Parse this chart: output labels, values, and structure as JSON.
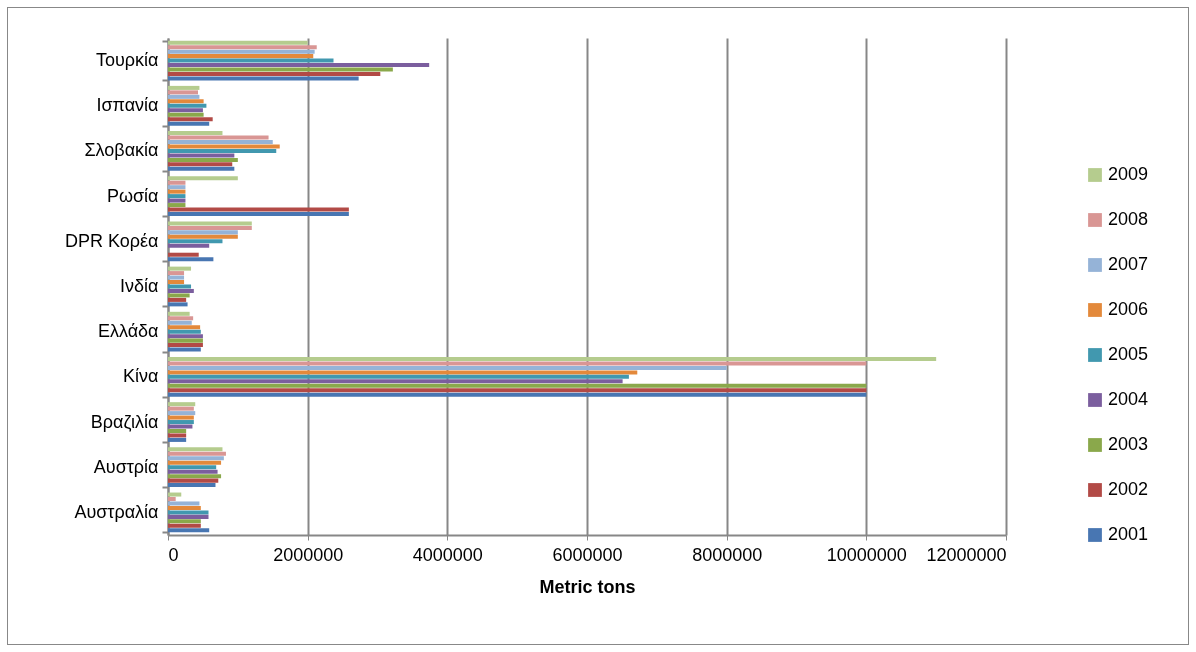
{
  "chart_data": {
    "type": "bar",
    "orientation": "horizontal",
    "xlabel": "Metric tons",
    "categories": [
      "Τουρκία",
      "Ισπανία",
      "Σλοβακία",
      "Ρωσία",
      "DPR Κορέα",
      "Ινδία",
      "Ελλάδα",
      "Κίνα",
      "Βραζιλία",
      "Αυστρία",
      "Αυστραλία"
    ],
    "series": [
      {
        "name": "2009",
        "color": "#b5cc8e",
        "values": [
          2000000,
          450000,
          780000,
          1000000,
          1200000,
          330000,
          310000,
          11000000,
          390000,
          780000,
          190000
        ]
      },
      {
        "name": "2008",
        "color": "#d99694",
        "values": [
          2130000,
          430000,
          1440000,
          250000,
          1200000,
          230000,
          360000,
          10000000,
          370000,
          830000,
          110000
        ]
      },
      {
        "name": "2007",
        "color": "#95b3d7",
        "values": [
          2100000,
          450000,
          1500000,
          250000,
          1000000,
          230000,
          340000,
          8000000,
          390000,
          800000,
          450000
        ]
      },
      {
        "name": "2006",
        "color": "#e3893b",
        "values": [
          2080000,
          510000,
          1600000,
          250000,
          1000000,
          230000,
          460000,
          6720000,
          370000,
          760000,
          470000
        ]
      },
      {
        "name": "2005",
        "color": "#4198af",
        "values": [
          2370000,
          550000,
          1550000,
          250000,
          780000,
          330000,
          470000,
          6600000,
          370000,
          690000,
          580000
        ]
      },
      {
        "name": "2004",
        "color": "#7b5e9e",
        "values": [
          3740000,
          500000,
          950000,
          250000,
          590000,
          370000,
          500000,
          6510000,
          350000,
          710000,
          580000
        ]
      },
      {
        "name": "2003",
        "color": "#8aa84b",
        "values": [
          3220000,
          510000,
          1000000,
          250000,
          null,
          310000,
          500000,
          10000000,
          260000,
          760000,
          470000
        ]
      },
      {
        "name": "2002",
        "color": "#b24a46",
        "values": [
          3040000,
          640000,
          920000,
          2590000,
          440000,
          260000,
          500000,
          10000000,
          260000,
          720000,
          470000
        ]
      },
      {
        "name": "2001",
        "color": "#4876b2",
        "values": [
          2730000,
          590000,
          950000,
          2590000,
          650000,
          280000,
          470000,
          10000000,
          260000,
          680000,
          590000
        ]
      }
    ],
    "xlim": [
      0,
      12000000
    ],
    "xticks": [
      0,
      2000000,
      4000000,
      6000000,
      8000000,
      10000000,
      12000000
    ],
    "grid": "x",
    "legend": "right"
  }
}
